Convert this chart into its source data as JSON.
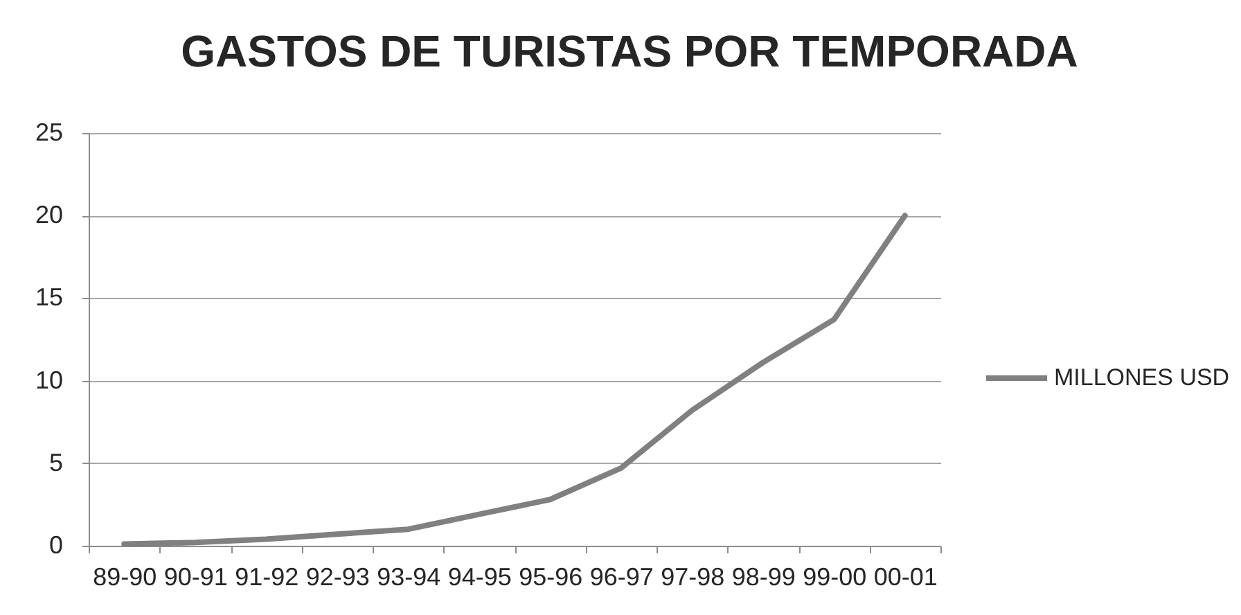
{
  "chart_data": {
    "type": "line",
    "title": "GASTOS DE TURISTAS POR TEMPORADA",
    "categories": [
      "89-90",
      "90-91",
      "91-92",
      "92-93",
      "93-94",
      "94-95",
      "95-96",
      "96-97",
      "97-98",
      "98-99",
      "99-00",
      "00-01"
    ],
    "series": [
      {
        "name": "MILLONES USD",
        "color": "#808080",
        "values": [
          0.1,
          0.2,
          0.4,
          0.7,
          1.0,
          1.9,
          2.8,
          4.7,
          8.2,
          11.1,
          13.7,
          20
        ]
      }
    ],
    "ylim": [
      0,
      25
    ],
    "yticks": [
      0,
      5,
      10,
      15,
      20,
      25
    ],
    "grid": "y",
    "legend": "right"
  }
}
